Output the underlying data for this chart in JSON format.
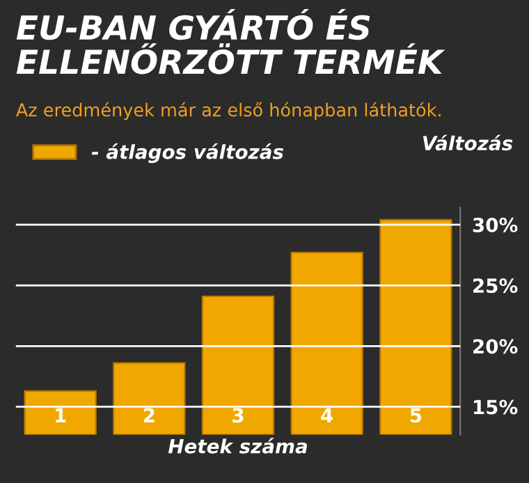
{
  "chart_data": {
    "type": "bar",
    "title": "EU-BAN GYÁRTÓ ÉS\nELLENŐRZÖTT TERMÉK",
    "subtitle": "Az eredmények már az első hónapban láthatók.",
    "xlabel": "Hetek száma",
    "ylabel": "Változás",
    "categories": [
      "1",
      "2",
      "3",
      "4",
      "5"
    ],
    "series": [
      {
        "name": "- átlagos változás",
        "color": "#f0a800",
        "values": [
          16.3,
          18.6,
          24.1,
          27.7,
          30.4
        ]
      }
    ],
    "ylim": [
      12.7,
      31.4
    ],
    "yticks": [
      {
        "value": 15,
        "label": "15%"
      },
      {
        "value": 20,
        "label": "20%"
      },
      {
        "value": 25,
        "label": "25%"
      },
      {
        "value": 30,
        "label": "30%"
      }
    ],
    "grid": "y",
    "legend": "top left"
  }
}
